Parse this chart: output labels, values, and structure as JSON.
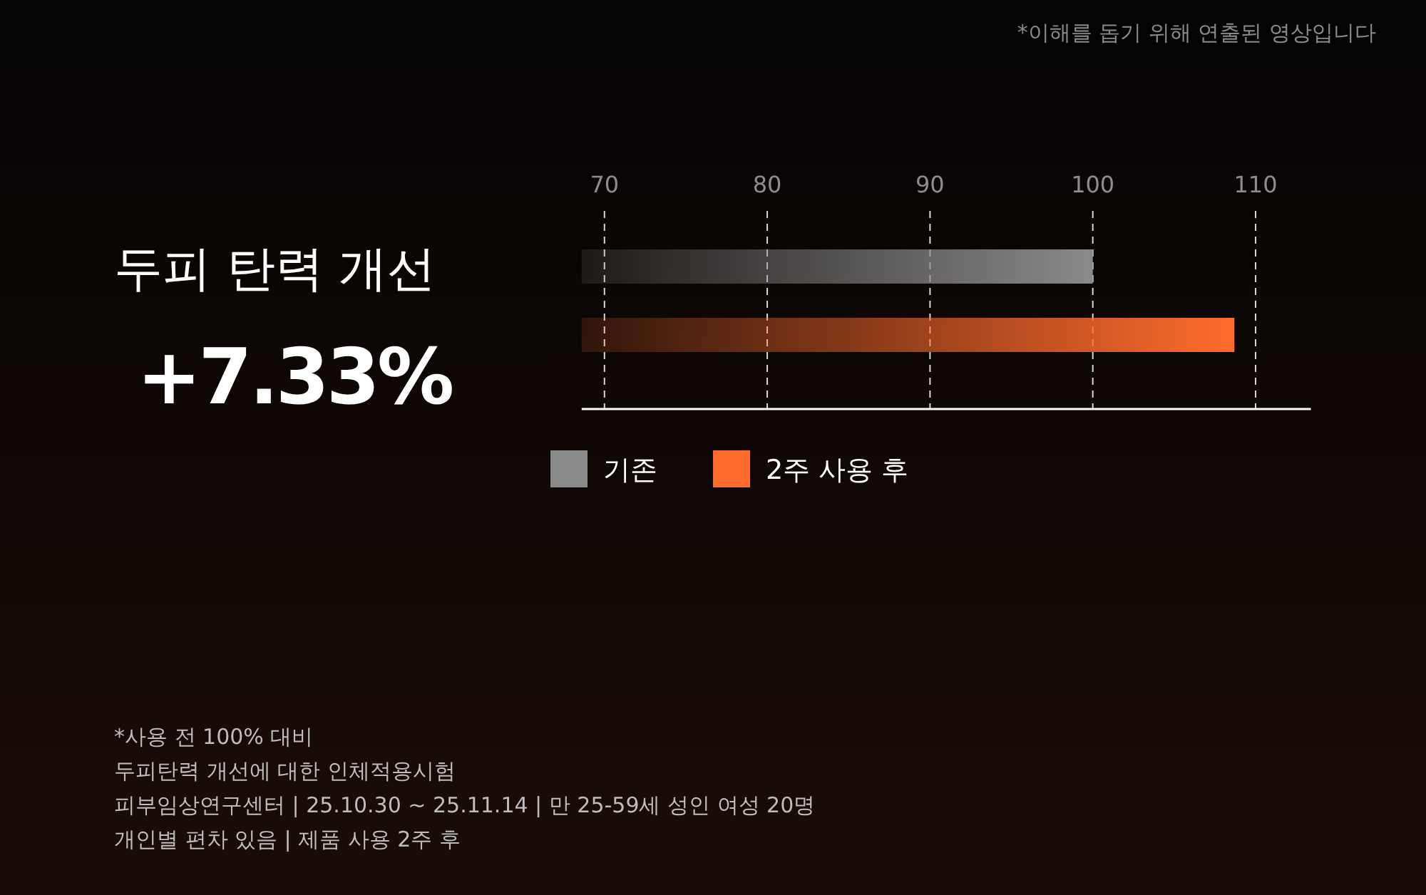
{
  "chart_data": {
    "type": "bar",
    "orientation": "horizontal",
    "title": "두피 탄력 개선",
    "categories": [
      null
    ],
    "series": [
      {
        "name": "기존",
        "color": "#8a8a8a",
        "values": [
          100
        ]
      },
      {
        "name": "2주 사용 후",
        "color": "#ff6b2c",
        "values": [
          108.7
        ]
      }
    ],
    "xlim": [
      68.6,
      113.4
    ],
    "xticks": [
      70,
      80,
      90,
      100,
      110
    ],
    "grid": "x",
    "legend": "bottom",
    "annotations": [
      "+7.33%",
      "*이해를 돕기 위해 연출된 영상입니다",
      "*사용 전 100% 대비",
      "두피탄력 개선에 대한 인체적용시험",
      "피부임상연구센터 | 25.10.30 ~ 25.11.14 | 만 25-59세 성인 여성 20명",
      "개인별 편차 있음 | 제품 사용 2주 후"
    ]
  }
}
